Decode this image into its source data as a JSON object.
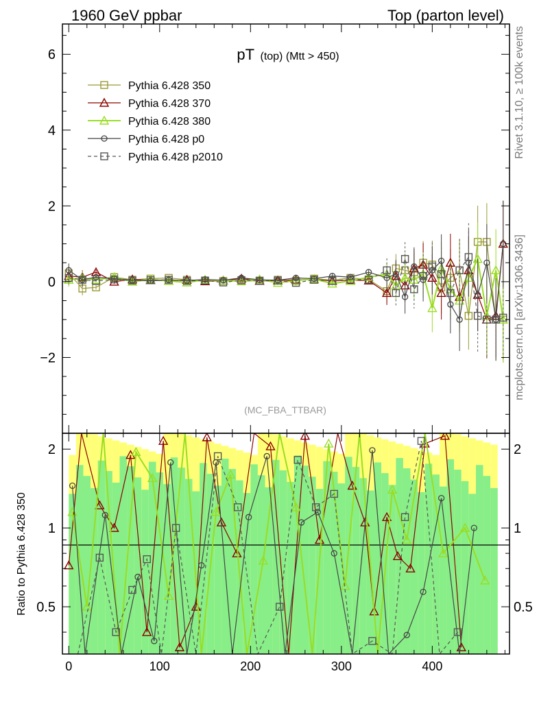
{
  "header": {
    "left": "1960 GeV ppbar",
    "right": "Top (parton level)"
  },
  "side_labels": {
    "rivet": "Rivet 3.1.10, ≥ 100k events",
    "mcplots": "mcplots.cern.ch [arXiv:1306.3436]"
  },
  "chart_data": {
    "type": "line",
    "title": "pT",
    "title_sub": "(top) (Mtt > 450)",
    "watermark": "(MC_FBA_TTBAR)",
    "main": {
      "ylim": [
        -4.0,
        6.8
      ],
      "yticks": [
        -2,
        0,
        2,
        4,
        6
      ],
      "ytick_labels": [
        "−2",
        "0",
        "2",
        "4",
        "6"
      ]
    },
    "ratio": {
      "ylabel": "Ratio to Pythia 6.428 350",
      "ylim": [
        0.33,
        2.3
      ],
      "yticks": [
        0.5,
        1,
        2
      ],
      "ytick_labels": [
        "0.5",
        "1",
        "2"
      ]
    },
    "x": {
      "xlim": [
        -7,
        485
      ],
      "xticks": [
        0,
        100,
        200,
        300,
        400
      ],
      "xtick_labels": [
        "0",
        "100",
        "200",
        "300",
        "400"
      ]
    },
    "legend_position": "top-left",
    "series": [
      {
        "name": "Pythia 6.428 350",
        "color": "#999933",
        "marker": "square",
        "dashed": false,
        "x": [
          0,
          15,
          30,
          50,
          70,
          90,
          110,
          130,
          150,
          170,
          190,
          210,
          230,
          250,
          270,
          290,
          310,
          330,
          350,
          360,
          370,
          380,
          390,
          400,
          410,
          420,
          430,
          440,
          450,
          460,
          470,
          478
        ],
        "y": [
          0.22,
          -0.18,
          -0.15,
          0.12,
          0.05,
          0.08,
          0.1,
          0.05,
          0.03,
          0.02,
          0.01,
          0.03,
          0.05,
          0.02,
          0.08,
          0.04,
          0.1,
          0.06,
          -0.25,
          0.35,
          0.3,
          0.25,
          0.5,
          0.45,
          -0.15,
          0.1,
          0.3,
          -0.9,
          1.05,
          1.05,
          -1.0,
          -1.0
        ]
      },
      {
        "name": "Pythia 6.428 370",
        "color": "#8b0000",
        "marker": "triangle",
        "dashed": false,
        "x": [
          0,
          15,
          30,
          50,
          70,
          90,
          110,
          130,
          150,
          170,
          190,
          210,
          230,
          250,
          270,
          290,
          310,
          330,
          350,
          360,
          370,
          380,
          390,
          400,
          410,
          420,
          430,
          440,
          450,
          460,
          470,
          478
        ],
        "y": [
          0.15,
          0.12,
          0.25,
          0.0,
          0.06,
          0.04,
          0.02,
          0.05,
          0.01,
          0.03,
          0.08,
          0.02,
          0.03,
          0.05,
          0.06,
          0.02,
          0.04,
          0.03,
          -0.3,
          0.15,
          -0.1,
          0.35,
          0.45,
          0.1,
          -0.3,
          0.5,
          -0.4,
          0.3,
          -0.35,
          -1.0,
          -0.9,
          1.0
        ]
      },
      {
        "name": "Pythia 6.428 380",
        "color": "#99dd22",
        "marker": "triangle",
        "dashed": false,
        "x": [
          0,
          15,
          30,
          50,
          70,
          90,
          110,
          130,
          150,
          170,
          190,
          210,
          230,
          250,
          270,
          290,
          310,
          330,
          350,
          360,
          370,
          380,
          390,
          400,
          410,
          420,
          430,
          440,
          450,
          460,
          470,
          478
        ],
        "y": [
          0.05,
          0.1,
          0.05,
          0.12,
          0.0,
          0.06,
          0.02,
          -0.02,
          0.05,
          0.03,
          0.02,
          0.06,
          -0.03,
          0.03,
          0.07,
          -0.05,
          0.02,
          0.12,
          0.2,
          -0.1,
          0.1,
          0.05,
          0.2,
          -0.7,
          0.35,
          -0.2,
          -0.5,
          0.1,
          0.6,
          -0.9,
          0.3,
          -1.0
        ]
      },
      {
        "name": "Pythia 6.428 p0",
        "color": "#444444",
        "marker": "circle",
        "dashed": false,
        "x": [
          0,
          15,
          30,
          50,
          70,
          90,
          110,
          130,
          150,
          170,
          190,
          210,
          230,
          250,
          270,
          290,
          310,
          330,
          350,
          360,
          370,
          380,
          390,
          400,
          410,
          420,
          430,
          440,
          450,
          460,
          470,
          478
        ],
        "y": [
          0.3,
          0.05,
          0.12,
          0.08,
          0.04,
          0.02,
          0.05,
          0.03,
          0.06,
          0.04,
          0.1,
          0.05,
          0.04,
          0.1,
          0.08,
          0.15,
          0.12,
          0.25,
          0.1,
          0.2,
          -0.4,
          0.4,
          0.05,
          0.3,
          0.55,
          -0.6,
          -1.0,
          0.5,
          -0.35,
          0.5,
          -1.0,
          1.0
        ]
      },
      {
        "name": "Pythia 6.428 p2010",
        "color": "#555555",
        "marker": "square",
        "dashed": true,
        "x": [
          0,
          15,
          30,
          50,
          70,
          90,
          110,
          130,
          150,
          170,
          190,
          210,
          230,
          250,
          270,
          290,
          310,
          330,
          350,
          360,
          370,
          380,
          390,
          400,
          410,
          420,
          430,
          440,
          450,
          460,
          470,
          478
        ],
        "y": [
          0.1,
          0.05,
          0.02,
          0.06,
          0.03,
          0.04,
          0.05,
          0.02,
          0.03,
          -0.02,
          0.04,
          0.02,
          0.03,
          -0.03,
          0.05,
          0.02,
          0.06,
          0.05,
          0.3,
          -0.3,
          0.6,
          -0.2,
          0.15,
          0.4,
          0.2,
          -0.3,
          0.3,
          0.65,
          -0.9,
          -1.0,
          -1.0,
          -0.95
        ]
      }
    ],
    "ratio_series": [
      {
        "name": "Pythia 6.428 370",
        "color": "#8b0000",
        "marker": "triangle",
        "dashed": false,
        "x": [
          0,
          14,
          34,
          50,
          68,
          86,
          104,
          122,
          140,
          152,
          168,
          185,
          204,
          222,
          242,
          260,
          276,
          296,
          312,
          326,
          336,
          350,
          362,
          376,
          392,
          414,
          432
        ],
        "y": [
          0.72,
          2.3,
          1.22,
          1.0,
          1.9,
          0.4,
          2.15,
          0.35,
          0.5,
          2.22,
          1.05,
          0.8,
          2.3,
          2.05,
          0.33,
          2.25,
          0.9,
          2.3,
          1.45,
          1.05,
          0.48,
          1.1,
          0.78,
          0.7,
          2.1,
          2.25,
          0.35
        ]
      },
      {
        "name": "Pythia 6.428 380",
        "color": "#99dd22",
        "marker": "triangle",
        "dashed": false,
        "x": [
          4,
          20,
          38,
          56,
          74,
          92,
          110,
          128,
          146,
          162,
          178,
          196,
          214,
          232,
          250,
          268,
          286,
          304,
          320,
          340,
          356,
          372,
          392,
          412,
          436,
          458
        ],
        "y": [
          1.15,
          0.5,
          2.3,
          0.33,
          1.95,
          1.55,
          0.55,
          2.3,
          0.33,
          1.15,
          1.6,
          0.33,
          0.75,
          2.3,
          1.2,
          0.33,
          2.1,
          0.6,
          2.3,
          0.33,
          1.4,
          0.9,
          2.3,
          0.8,
          1.0,
          0.63
        ]
      },
      {
        "name": "Pythia 6.428 p0",
        "color": "#444444",
        "marker": "circle",
        "dashed": false,
        "x": [
          4,
          18,
          40,
          58,
          76,
          94,
          112,
          130,
          146,
          162,
          180,
          198,
          218,
          238,
          256,
          274,
          292,
          312,
          334,
          352,
          372,
          390,
          410,
          430,
          446
        ],
        "y": [
          1.45,
          0.33,
          1.12,
          0.33,
          0.65,
          0.37,
          1.78,
          0.33,
          0.72,
          1.78,
          0.33,
          1.1,
          1.88,
          0.33,
          1.05,
          1.15,
          0.8,
          0.33,
          1.98,
          0.33,
          0.39,
          0.57,
          1.3,
          0.33,
          1.0
        ]
      },
      {
        "name": "Pythia 6.428 p2010",
        "color": "#555555",
        "marker": "square",
        "dashed": true,
        "x": [
          10,
          34,
          52,
          70,
          86,
          102,
          118,
          140,
          164,
          186,
          208,
          232,
          252,
          272,
          292,
          312,
          334,
          356,
          370,
          388,
          408,
          428
        ],
        "y": [
          0.33,
          0.77,
          0.4,
          0.58,
          0.76,
          0.33,
          1.0,
          0.33,
          1.88,
          1.2,
          0.33,
          0.5,
          1.82,
          1.2,
          1.35,
          0.33,
          0.37,
          0.33,
          1.1,
          2.15,
          0.33,
          0.4
        ]
      }
    ]
  }
}
